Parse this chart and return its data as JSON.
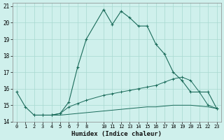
{
  "xlabel": "Humidex (Indice chaleur)",
  "bg_color": "#cff0ec",
  "line_color": "#1a6b5a",
  "grid_color": "#a8d8d0",
  "xlim": [
    -0.5,
    23.5
  ],
  "ylim": [
    14,
    21.2
  ],
  "yticks": [
    14,
    15,
    16,
    17,
    18,
    19,
    20,
    21
  ],
  "xticks": [
    0,
    1,
    2,
    3,
    4,
    5,
    6,
    7,
    8,
    10,
    11,
    12,
    13,
    14,
    15,
    16,
    17,
    18,
    19,
    20,
    21,
    22,
    23
  ],
  "line1_x": [
    0,
    1,
    2,
    3,
    4,
    5,
    6,
    7,
    8,
    10,
    11,
    12,
    13,
    14,
    15,
    16,
    17,
    18,
    19,
    20,
    21,
    22,
    23
  ],
  "line1_y": [
    15.8,
    14.9,
    14.4,
    14.4,
    14.4,
    14.5,
    15.2,
    17.3,
    19.0,
    20.8,
    19.9,
    20.7,
    20.3,
    19.8,
    19.8,
    18.7,
    18.1,
    17.0,
    16.5,
    15.8,
    15.8,
    15.8,
    14.8
  ],
  "line2_x": [
    2,
    3,
    4,
    5,
    6,
    7,
    8,
    10,
    11,
    12,
    13,
    14,
    15,
    16,
    17,
    18,
    19,
    20,
    21,
    22,
    23
  ],
  "line2_y": [
    14.4,
    14.4,
    14.4,
    14.5,
    14.9,
    15.1,
    15.3,
    15.6,
    15.7,
    15.8,
    15.9,
    16.0,
    16.1,
    16.2,
    16.4,
    16.6,
    16.7,
    16.5,
    15.8,
    15.0,
    14.8
  ],
  "line3_x": [
    2,
    3,
    4,
    5,
    6,
    7,
    8,
    10,
    11,
    12,
    13,
    14,
    15,
    16,
    17,
    18,
    19,
    20,
    21,
    22,
    23
  ],
  "line3_y": [
    14.4,
    14.4,
    14.4,
    14.4,
    14.45,
    14.5,
    14.55,
    14.65,
    14.7,
    14.75,
    14.8,
    14.85,
    14.9,
    14.9,
    14.95,
    15.0,
    15.0,
    15.0,
    14.95,
    14.9,
    14.8
  ]
}
